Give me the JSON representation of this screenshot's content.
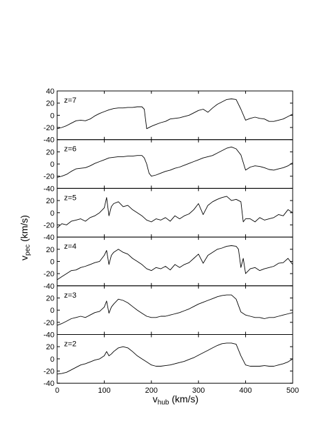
{
  "chart_data": {
    "type": "line",
    "xlabel_main": "v",
    "xlabel_sub": "hub",
    "xlabel_unit": " (km/s)",
    "ylabel_main": "v",
    "ylabel_sub": "pec",
    "ylabel_unit": " (km/s)",
    "xlim": [
      0,
      500
    ],
    "x_ticks": [
      0,
      100,
      200,
      300,
      400,
      500
    ],
    "x_tick_labels": [
      "0",
      "100",
      "200",
      "300",
      "400",
      "500"
    ],
    "ylim": [
      -40,
      40
    ],
    "grid": false,
    "legend": "none",
    "line_color": "#000000",
    "panels": [
      {
        "label": "z=7",
        "y_ticks": [
          -40,
          -20,
          0,
          20,
          40
        ],
        "y_tick_labels": [
          "-40",
          "-20",
          "0",
          "20",
          "40"
        ],
        "x": [
          0,
          10,
          20,
          30,
          40,
          50,
          60,
          70,
          80,
          90,
          100,
          110,
          120,
          130,
          140,
          150,
          160,
          170,
          180,
          185,
          190,
          200,
          210,
          220,
          230,
          240,
          250,
          260,
          270,
          280,
          290,
          300,
          310,
          320,
          330,
          340,
          350,
          360,
          370,
          380,
          390,
          400,
          410,
          420,
          430,
          440,
          450,
          460,
          470,
          480,
          490,
          500
        ],
        "y": [
          -22,
          -20,
          -17,
          -13,
          -9,
          -8,
          -9,
          -6,
          -1,
          3,
          6,
          9,
          11,
          12,
          12,
          13,
          13,
          14,
          14,
          10,
          -22,
          -18,
          -15,
          -12,
          -10,
          -6,
          -5,
          -4,
          -2,
          0,
          4,
          8,
          10,
          5,
          12,
          18,
          22,
          26,
          27,
          26,
          10,
          -8,
          -5,
          -3,
          -5,
          -6,
          -10,
          -10,
          -8,
          -6,
          -2,
          2
        ]
      },
      {
        "label": "z=6",
        "y_ticks": [
          -40,
          -20,
          0,
          20
        ],
        "y_tick_labels": [
          "-40",
          "-20",
          "0",
          "20"
        ],
        "x": [
          0,
          10,
          20,
          30,
          40,
          50,
          60,
          70,
          80,
          90,
          100,
          110,
          120,
          130,
          140,
          150,
          160,
          170,
          180,
          185,
          190,
          195,
          200,
          210,
          220,
          230,
          240,
          250,
          260,
          270,
          280,
          290,
          300,
          310,
          320,
          330,
          340,
          350,
          360,
          370,
          380,
          390,
          400,
          410,
          420,
          430,
          440,
          450,
          460,
          470,
          480,
          490,
          500
        ],
        "y": [
          -22,
          -20,
          -17,
          -12,
          -8,
          -7,
          -6,
          -3,
          1,
          4,
          7,
          10,
          11,
          12,
          12,
          13,
          13,
          14,
          14,
          10,
          0,
          -15,
          -20,
          -18,
          -15,
          -12,
          -10,
          -7,
          -5,
          -2,
          1,
          4,
          7,
          10,
          12,
          14,
          18,
          22,
          26,
          28,
          25,
          15,
          -10,
          -5,
          -3,
          -4,
          -6,
          -9,
          -10,
          -8,
          -6,
          -3,
          2
        ]
      },
      {
        "label": "z=5",
        "y_ticks": [
          -40,
          -20,
          0,
          20
        ],
        "y_tick_labels": [
          "-40",
          "-20",
          "0",
          "20"
        ],
        "x": [
          0,
          10,
          20,
          30,
          40,
          50,
          60,
          70,
          80,
          90,
          100,
          105,
          110,
          115,
          120,
          130,
          140,
          150,
          160,
          170,
          180,
          190,
          200,
          210,
          220,
          230,
          240,
          250,
          260,
          270,
          280,
          290,
          300,
          310,
          320,
          330,
          340,
          350,
          360,
          370,
          380,
          390,
          395,
          400,
          410,
          420,
          430,
          440,
          450,
          460,
          470,
          480,
          490,
          500
        ],
        "y": [
          -25,
          -18,
          -20,
          -14,
          -12,
          -10,
          -14,
          -8,
          -5,
          0,
          8,
          25,
          -5,
          10,
          15,
          18,
          10,
          12,
          5,
          0,
          -5,
          -12,
          -15,
          -10,
          -12,
          -8,
          -14,
          -5,
          -10,
          -5,
          -2,
          5,
          15,
          -3,
          12,
          18,
          22,
          25,
          27,
          20,
          22,
          18,
          -15,
          -10,
          -10,
          -15,
          -8,
          -12,
          -10,
          -8,
          -3,
          -5,
          5,
          0
        ]
      },
      {
        "label": "z=4",
        "y_ticks": [
          -40,
          -20,
          0,
          20
        ],
        "y_tick_labels": [
          "-40",
          "-20",
          "0",
          "20"
        ],
        "x": [
          0,
          10,
          20,
          30,
          40,
          50,
          60,
          70,
          80,
          90,
          100,
          105,
          110,
          115,
          120,
          130,
          140,
          150,
          160,
          170,
          180,
          190,
          200,
          210,
          220,
          230,
          240,
          250,
          260,
          270,
          280,
          290,
          300,
          310,
          320,
          330,
          340,
          350,
          360,
          370,
          380,
          385,
          390,
          395,
          400,
          410,
          420,
          430,
          440,
          450,
          460,
          470,
          480,
          490,
          500
        ],
        "y": [
          -30,
          -25,
          -20,
          -15,
          -14,
          -10,
          -8,
          -5,
          -2,
          0,
          10,
          18,
          -5,
          10,
          15,
          20,
          15,
          12,
          5,
          0,
          -5,
          -12,
          -15,
          -10,
          -12,
          -8,
          -14,
          -5,
          -10,
          -5,
          -2,
          5,
          12,
          -3,
          10,
          15,
          20,
          22,
          25,
          26,
          25,
          20,
          -10,
          5,
          -20,
          -12,
          -10,
          -15,
          -12,
          -10,
          -8,
          -3,
          -2,
          5,
          -5
        ]
      },
      {
        "label": "z=3",
        "y_ticks": [
          -40,
          -20,
          0,
          20
        ],
        "y_tick_labels": [
          "-40",
          "-20",
          "0",
          "20"
        ],
        "x": [
          0,
          10,
          20,
          30,
          40,
          50,
          60,
          70,
          80,
          90,
          100,
          105,
          110,
          115,
          120,
          130,
          140,
          150,
          160,
          170,
          180,
          190,
          200,
          210,
          220,
          230,
          240,
          250,
          260,
          270,
          280,
          290,
          300,
          310,
          320,
          330,
          340,
          350,
          360,
          370,
          380,
          390,
          400,
          410,
          420,
          430,
          440,
          450,
          460,
          470,
          480,
          490,
          500
        ],
        "y": [
          -25,
          -22,
          -18,
          -14,
          -12,
          -10,
          -12,
          -8,
          -4,
          -2,
          5,
          15,
          -5,
          5,
          10,
          18,
          16,
          12,
          6,
          0,
          -5,
          -10,
          -12,
          -12,
          -10,
          -10,
          -8,
          -6,
          -4,
          -1,
          2,
          6,
          10,
          13,
          16,
          19,
          22,
          24,
          25,
          25,
          18,
          -3,
          -8,
          -10,
          -12,
          -12,
          -14,
          -12,
          -12,
          -10,
          -8,
          -6,
          -4
        ]
      },
      {
        "label": "z=2",
        "y_ticks": [
          -40,
          -20,
          0,
          20
        ],
        "y_tick_labels": [
          "-40",
          "-20",
          "0",
          "20"
        ],
        "x": [
          0,
          10,
          20,
          30,
          40,
          50,
          60,
          70,
          80,
          90,
          100,
          105,
          110,
          115,
          120,
          130,
          140,
          150,
          160,
          170,
          180,
          190,
          200,
          210,
          220,
          230,
          240,
          250,
          260,
          270,
          280,
          290,
          300,
          310,
          320,
          330,
          340,
          350,
          360,
          370,
          380,
          390,
          400,
          410,
          420,
          430,
          440,
          450,
          460,
          470,
          480,
          490,
          500
        ],
        "y": [
          -25,
          -24,
          -22,
          -18,
          -14,
          -10,
          -8,
          -5,
          -2,
          0,
          5,
          12,
          5,
          8,
          12,
          18,
          20,
          18,
          12,
          5,
          0,
          -5,
          -10,
          -12,
          -12,
          -11,
          -10,
          -8,
          -6,
          -4,
          -1,
          2,
          6,
          10,
          14,
          18,
          22,
          25,
          26,
          26,
          24,
          5,
          -10,
          -12,
          -12,
          -12,
          -11,
          -12,
          -12,
          -10,
          -8,
          -5,
          0
        ]
      }
    ]
  }
}
